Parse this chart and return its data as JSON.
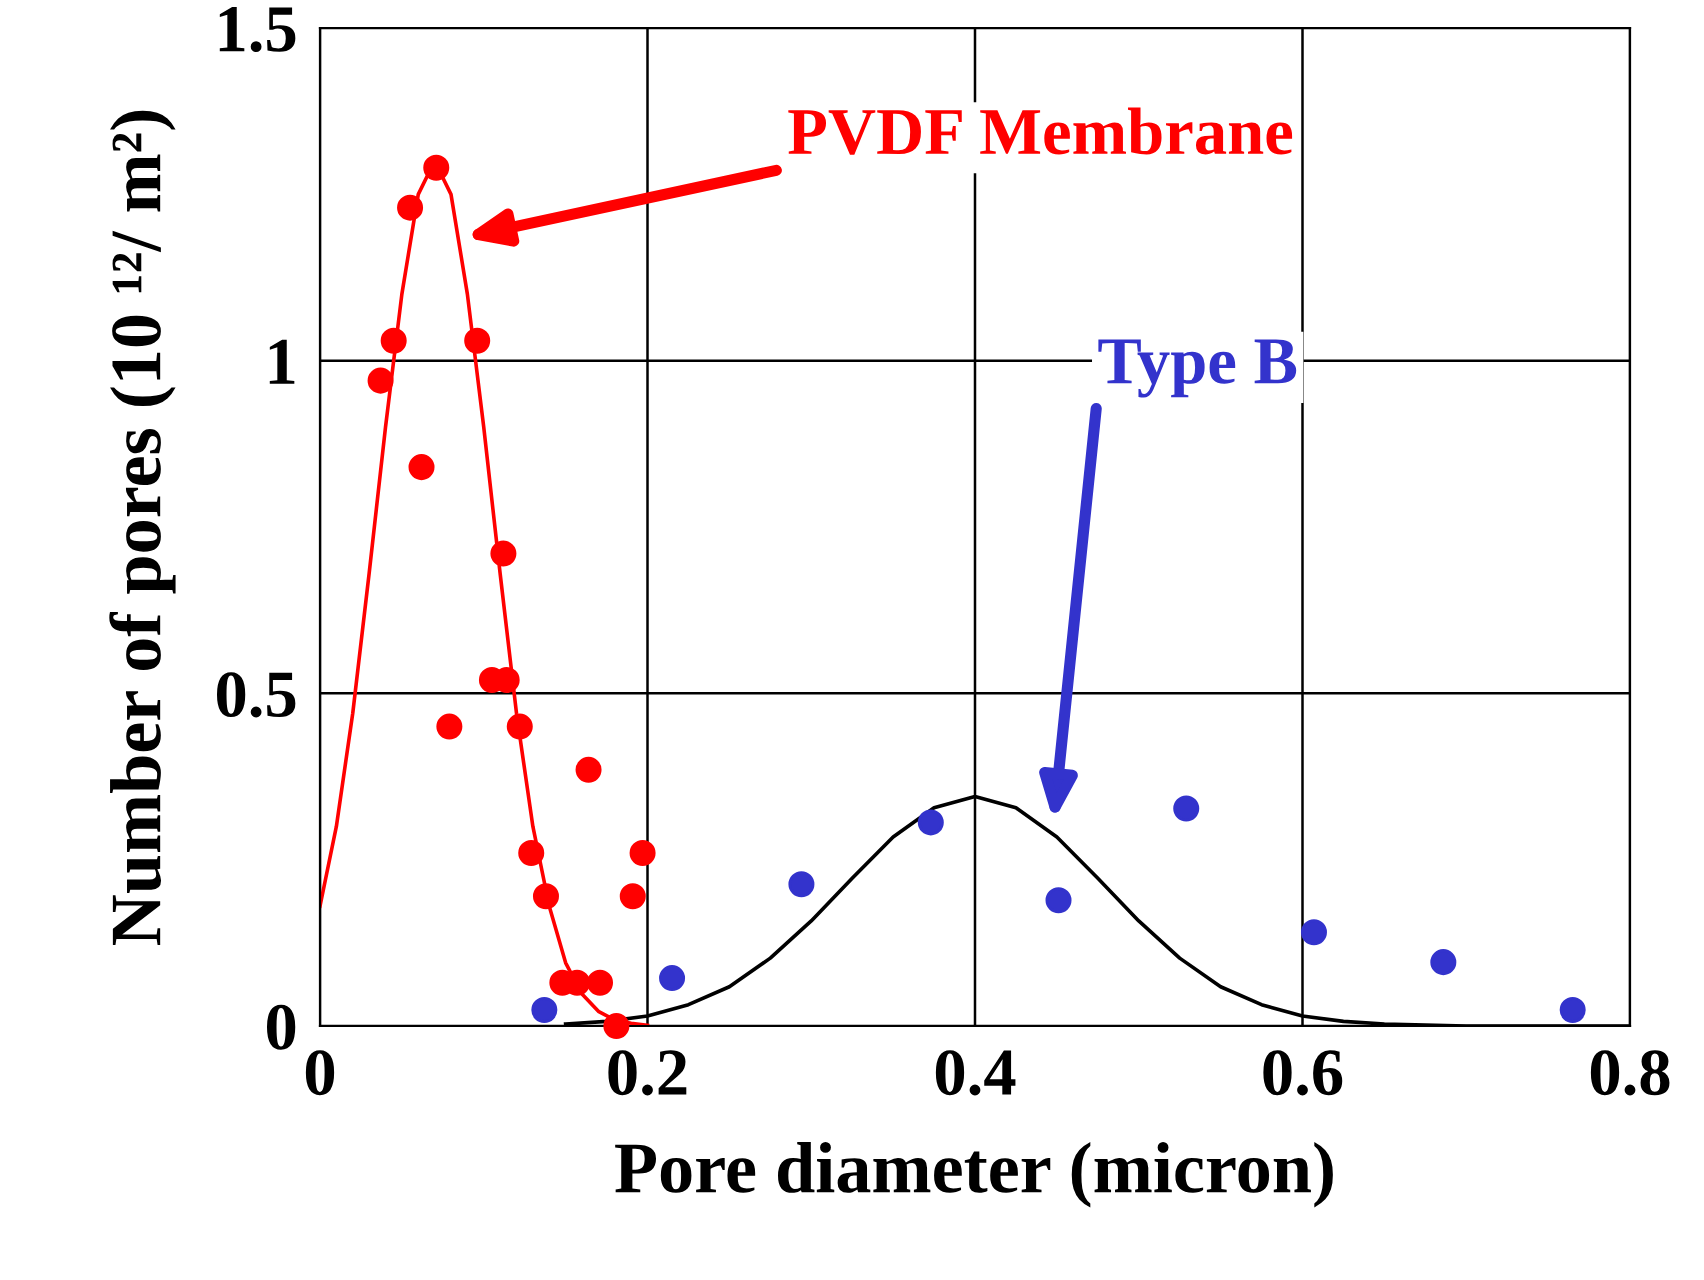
{
  "chart_data": {
    "type": "scatter",
    "xlabel": "Pore diameter (micron)",
    "ylabel": "Number of pores (10 ¹²/ m²)",
    "xlim": [
      0,
      0.8
    ],
    "ylim": [
      0,
      1.5
    ],
    "xticks": [
      0,
      0.2,
      0.4,
      0.6,
      0.8
    ],
    "yticks": [
      0,
      0.5,
      1,
      1.5
    ],
    "grid": true,
    "series": [
      {
        "color": "#ff0000",
        "marker": "circle",
        "x": [
          0.037,
          0.045,
          0.055,
          0.062,
          0.071,
          0.079,
          0.096,
          0.105,
          0.112,
          0.114,
          0.122,
          0.129,
          0.138,
          0.148,
          0.157,
          0.171,
          0.164,
          0.181,
          0.191,
          0.197
        ],
        "values": [
          0.97,
          1.03,
          1.23,
          0.84,
          1.29,
          0.45,
          1.03,
          0.52,
          0.71,
          0.52,
          0.45,
          0.26,
          0.195,
          0.065,
          0.065,
          0.065,
          0.385,
          0.0,
          0.195,
          0.26
        ]
      },
      {
        "color": "#3333cc",
        "marker": "circle",
        "x": [
          0.137,
          0.215,
          0.294,
          0.373,
          0.451,
          0.529,
          0.607,
          0.686,
          0.765
        ],
        "values": [
          0.024,
          0.072,
          0.213,
          0.306,
          0.189,
          0.327,
          0.141,
          0.096,
          0.024
        ]
      },
      {
        "type": "line",
        "color": "#ff0000",
        "marker": "none",
        "x": [
          0,
          0.01,
          0.02,
          0.03,
          0.04,
          0.05,
          0.06,
          0.07,
          0.08,
          0.09,
          0.1,
          0.11,
          0.12,
          0.13,
          0.14,
          0.15,
          0.16,
          0.17,
          0.18,
          0.19,
          0.2
        ],
        "values": [
          0.18,
          0.3,
          0.47,
          0.68,
          0.9,
          1.1,
          1.25,
          1.3,
          1.25,
          1.1,
          0.9,
          0.68,
          0.47,
          0.3,
          0.18,
          0.095,
          0.048,
          0.022,
          0.009,
          0.004,
          0.001
        ]
      },
      {
        "type": "line",
        "color": "#000000",
        "marker": "none",
        "x": [
          0.15,
          0.175,
          0.2,
          0.225,
          0.25,
          0.275,
          0.3,
          0.325,
          0.35,
          0.375,
          0.4,
          0.425,
          0.45,
          0.475,
          0.5,
          0.525,
          0.55,
          0.575,
          0.6,
          0.625,
          0.65,
          0.7,
          0.8
        ],
        "values": [
          0.003,
          0.007,
          0.015,
          0.032,
          0.059,
          0.102,
          0.158,
          0.222,
          0.284,
          0.328,
          0.345,
          0.328,
          0.284,
          0.222,
          0.158,
          0.102,
          0.059,
          0.032,
          0.015,
          0.007,
          0.003,
          0.0,
          0.0
        ]
      }
    ],
    "annotations": [
      "PVDF Membrane",
      "Type B"
    ]
  }
}
